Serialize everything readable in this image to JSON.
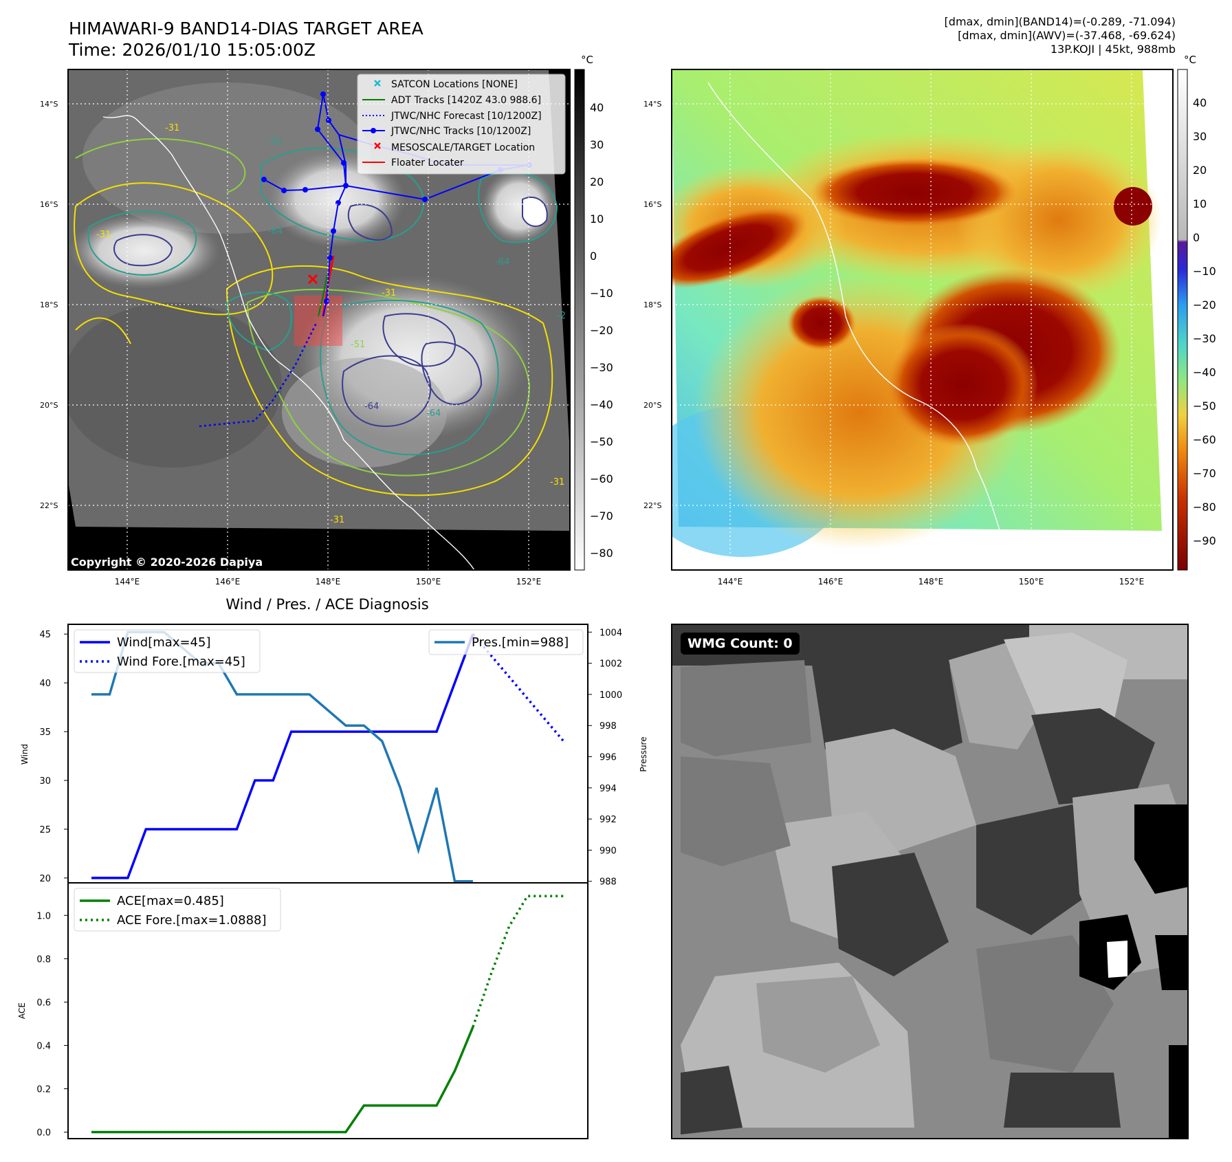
{
  "header": {
    "title": "HIMAWARI-9 BAND14-DIAS TARGET AREA",
    "time": "Time: 2026/01/10 15:05:00Z",
    "stats_band14": "[dmax, dmin](BAND14)=(-0.289, -71.094)",
    "stats_awv": "[dmax, dmin](AWV)=(-37.468, -69.624)",
    "storm": "13P.KOJI | 45kt, 988mb"
  },
  "ir_map": {
    "lon_ticks": [
      "144°E",
      "146°E",
      "148°E",
      "150°E",
      "152°E"
    ],
    "lat_ticks": [
      "14°S",
      "16°S",
      "18°S",
      "20°S",
      "22°S"
    ],
    "colorbar_unit": "°C",
    "colorbar_ticks": [
      "40",
      "30",
      "20",
      "10",
      "0",
      "−10",
      "−20",
      "−30",
      "−40",
      "−50",
      "−60",
      "−70",
      "−80"
    ],
    "copyright": "Copyright © 2020-2026 Dapiya",
    "legend": [
      {
        "label": "SATCON Locations [NONE]",
        "color": "#17becf",
        "style": "x"
      },
      {
        "label": "ADT Tracks [1420Z 43.0 988.6]",
        "color": "#008000",
        "style": "line"
      },
      {
        "label": "JTWC/NHC Forecast [10/1200Z]",
        "color": "#0000ff",
        "style": "dotted"
      },
      {
        "label": "JTWC/NHC Tracks [10/1200Z]",
        "color": "#0000ff",
        "style": "line-dot"
      },
      {
        "label": "MESOSCALE/TARGET Location",
        "color": "#ff0000",
        "style": "x"
      },
      {
        "label": "Floater Locater",
        "color": "#ff0000",
        "style": "line"
      }
    ],
    "contour_labels": [
      "-31",
      "-51",
      "-64",
      "-31",
      "-64",
      "-31",
      "-51",
      "-64",
      "-31",
      "-64",
      "-31",
      "-2"
    ]
  },
  "color_map": {
    "colorbar_unit": "°C",
    "colorbar_ticks": [
      "40",
      "30",
      "20",
      "10",
      "0",
      "−10",
      "−20",
      "−30",
      "−40",
      "−50",
      "−60",
      "−70",
      "−80",
      "−90"
    ],
    "lon_ticks": [
      "144°E",
      "146°E",
      "148°E",
      "150°E",
      "152°E"
    ],
    "lat_ticks": [
      "14°S",
      "16°S",
      "18°S",
      "20°S",
      "22°S"
    ]
  },
  "wmg": {
    "label": "WMG Count: 0"
  },
  "diagnosis": {
    "title": "Wind / Pres. / ACE Diagnosis"
  },
  "chart_data": [
    {
      "type": "line",
      "title": "Wind / Pres. / ACE Diagnosis",
      "ylabel": "Wind",
      "ylim": [
        19.5,
        46
      ],
      "yticks": [
        20,
        25,
        30,
        35,
        40,
        45
      ],
      "y2label": "Pressure",
      "y2lim": [
        987.9,
        1004.5
      ],
      "y2ticks": [
        988,
        990,
        992,
        994,
        996,
        998,
        1000,
        1002,
        1004
      ],
      "x": [
        0,
        1,
        2,
        3,
        4,
        5,
        6,
        7,
        8,
        9,
        10,
        11,
        12,
        13,
        14,
        15,
        16,
        17,
        18,
        19,
        20,
        21,
        22
      ],
      "series": [
        {
          "name": "Wind[max=45]",
          "legend": "Wind[max=45]",
          "axis": "left",
          "color": "#0000ff",
          "style": "solid",
          "x": [
            0,
            2,
            3,
            8,
            9,
            10,
            11,
            12,
            13,
            14,
            15,
            16,
            17,
            18,
            19,
            20,
            21
          ],
          "values": [
            20,
            20,
            25,
            25,
            30,
            30,
            35,
            35,
            35,
            35,
            35,
            35,
            35,
            35,
            35,
            40,
            45
          ]
        },
        {
          "name": "Wind Fore.[max=45]",
          "legend": "Wind Fore.[max=45]",
          "axis": "left",
          "color": "#0000ff",
          "style": "dotted",
          "x": [
            21,
            22,
            23,
            24,
            25,
            26
          ],
          "values": [
            45,
            42.8,
            40.6,
            38.4,
            36.2,
            34
          ]
        },
        {
          "name": "Pres.[min=988]",
          "legend": "Pres.[min=988]",
          "axis": "right",
          "color": "#1f77b4",
          "style": "solid",
          "x": [
            0,
            1,
            2,
            3,
            4,
            5,
            6,
            7,
            8,
            9,
            10,
            11,
            12,
            13,
            14,
            15,
            16,
            17,
            18,
            19,
            20,
            21
          ],
          "values": [
            1000,
            1000,
            1004,
            1004,
            1004,
            1003,
            1002,
            1002,
            1000,
            1000,
            1000,
            1000,
            1000,
            999,
            998,
            998,
            997,
            994,
            990,
            994,
            988,
            988
          ]
        }
      ]
    },
    {
      "type": "line",
      "ylabel": "ACE",
      "ylim": [
        -0.03,
        1.15
      ],
      "yticks": [
        0.0,
        0.2,
        0.4,
        0.6,
        0.8,
        1.0
      ],
      "ytick_labels": [
        "0.0",
        "0.2",
        "0.4",
        "0.6",
        "0.8",
        "1.0"
      ],
      "series": [
        {
          "name": "ACE[max=0.485]",
          "legend": "ACE[max=0.485]",
          "color": "#008000",
          "style": "solid",
          "x": [
            0,
            14,
            15,
            16,
            17,
            18,
            19,
            20,
            21
          ],
          "values": [
            0,
            0,
            0.1225,
            0.1225,
            0.1225,
            0.1225,
            0.1225,
            0.2825,
            0.485
          ]
        },
        {
          "name": "ACE Fore.[max=1.0888]",
          "legend": "ACE Fore.[max=1.0888]",
          "color": "#008000",
          "style": "dotted",
          "x": [
            21,
            22,
            23,
            24,
            25,
            26
          ],
          "values": [
            0.485,
            0.73,
            0.95,
            1.0888,
            1.0888,
            1.0888
          ]
        }
      ]
    }
  ]
}
